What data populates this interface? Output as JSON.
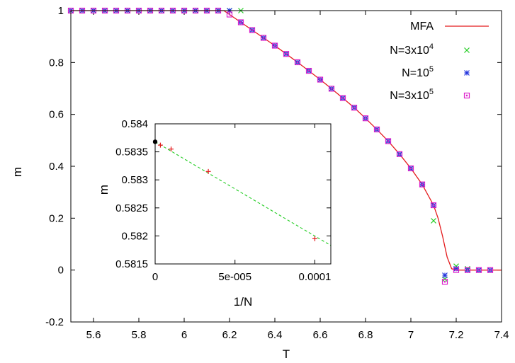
{
  "chart_data": [
    {
      "type": "scatter",
      "title": "",
      "xlabel": "T",
      "ylabel": "m",
      "xlim": [
        5.5,
        7.4
      ],
      "ylim": [
        -0.2,
        1.0
      ],
      "xticks": [
        "5.6",
        "5.8",
        "6",
        "6.2",
        "6.4",
        "6.6",
        "6.8",
        "7",
        "7.2",
        "7.4"
      ],
      "yticks": [
        "-0.2",
        "0",
        "0.2",
        "0.4",
        "0.6",
        "0.8",
        "1"
      ],
      "legend_position": "top-right",
      "series": [
        {
          "name": "MFA",
          "kind": "line",
          "color": "#e41a1c",
          "x": [
            5.5,
            5.6,
            5.7,
            5.8,
            5.9,
            6.0,
            6.1,
            6.15,
            6.175,
            6.2,
            6.25,
            6.3,
            6.35,
            6.4,
            6.45,
            6.5,
            6.55,
            6.6,
            6.65,
            6.7,
            6.75,
            6.8,
            6.85,
            6.9,
            6.95,
            7.0,
            7.05,
            7.1,
            7.12,
            7.14,
            7.16,
            7.18,
            7.2,
            7.25,
            7.3,
            7.35,
            7.4
          ],
          "y": [
            1.0,
            1.0,
            1.0,
            1.0,
            1.0,
            1.0,
            1.0,
            1.0,
            1.0,
            0.985,
            0.955,
            0.925,
            0.895,
            0.865,
            0.833,
            0.801,
            0.768,
            0.734,
            0.699,
            0.663,
            0.626,
            0.585,
            0.542,
            0.497,
            0.447,
            0.392,
            0.33,
            0.25,
            0.2,
            0.13,
            0.05,
            0.005,
            0.0,
            0.0,
            0.0,
            0.0,
            0.0
          ]
        },
        {
          "name": "N=3x10^4",
          "label_base": "N=3x10",
          "label_exp": "4",
          "kind": "points",
          "marker": "x",
          "color": "#22cc22",
          "x": [
            5.5,
            5.55,
            5.6,
            5.65,
            5.7,
            5.75,
            5.8,
            5.85,
            5.9,
            5.95,
            6.0,
            6.05,
            6.1,
            6.15,
            6.2,
            6.25,
            6.3,
            6.35,
            6.4,
            6.45,
            6.5,
            6.55,
            6.6,
            6.65,
            6.7,
            6.75,
            6.8,
            6.85,
            6.9,
            6.95,
            7.0,
            7.05,
            7.1,
            7.15,
            7.2,
            7.25,
            7.3,
            7.35
          ],
          "y": [
            1.0,
            1.0,
            1.0,
            1.0,
            1.0,
            1.0,
            1.0,
            1.0,
            1.0,
            1.0,
            1.0,
            1.0,
            1.0,
            1.0,
            1.0,
            1.0,
            0.925,
            0.895,
            0.865,
            0.833,
            0.801,
            0.768,
            0.734,
            0.699,
            0.663,
            0.626,
            0.585,
            0.542,
            0.497,
            0.447,
            0.392,
            0.33,
            0.19,
            -0.035,
            0.015,
            0.005,
            0.0,
            0.0
          ]
        },
        {
          "name": "N=10^5",
          "label_base": "N=10",
          "label_exp": "5",
          "kind": "points",
          "marker": "star",
          "color": "#2233dd",
          "x": [
            5.5,
            5.55,
            5.6,
            5.65,
            5.7,
            5.75,
            5.8,
            5.85,
            5.9,
            5.95,
            6.0,
            6.05,
            6.1,
            6.15,
            6.2,
            6.25,
            6.3,
            6.35,
            6.4,
            6.45,
            6.5,
            6.55,
            6.6,
            6.65,
            6.7,
            6.75,
            6.8,
            6.85,
            6.9,
            6.95,
            7.0,
            7.05,
            7.1,
            7.15,
            7.2,
            7.25,
            7.3,
            7.35
          ],
          "y": [
            1.0,
            1.0,
            1.0,
            1.0,
            1.0,
            1.0,
            1.0,
            1.0,
            1.0,
            1.0,
            1.0,
            1.0,
            1.0,
            1.0,
            1.0,
            0.955,
            0.925,
            0.895,
            0.865,
            0.833,
            0.801,
            0.768,
            0.734,
            0.699,
            0.663,
            0.626,
            0.585,
            0.542,
            0.497,
            0.447,
            0.392,
            0.33,
            0.25,
            -0.02,
            0.005,
            0.0,
            0.0,
            0.0
          ]
        },
        {
          "name": "N=3x10^5",
          "label_base": "N=3x10",
          "label_exp": "5",
          "kind": "points",
          "marker": "box",
          "color": "#dd22cc",
          "x": [
            5.5,
            5.55,
            5.6,
            5.65,
            5.7,
            5.75,
            5.8,
            5.85,
            5.9,
            5.95,
            6.0,
            6.05,
            6.1,
            6.15,
            6.2,
            6.25,
            6.3,
            6.35,
            6.4,
            6.45,
            6.5,
            6.55,
            6.6,
            6.65,
            6.7,
            6.75,
            6.8,
            6.85,
            6.9,
            6.95,
            7.0,
            7.05,
            7.1,
            7.15,
            7.2,
            7.25,
            7.3,
            7.35
          ],
          "y": [
            1.0,
            1.0,
            1.0,
            1.0,
            1.0,
            1.0,
            1.0,
            1.0,
            1.0,
            1.0,
            1.0,
            1.0,
            1.0,
            1.0,
            0.985,
            0.955,
            0.925,
            0.895,
            0.865,
            0.833,
            0.801,
            0.768,
            0.734,
            0.699,
            0.663,
            0.626,
            0.585,
            0.542,
            0.497,
            0.447,
            0.392,
            0.33,
            0.25,
            -0.045,
            0.0,
            0.0,
            0.0,
            0.0
          ]
        }
      ]
    },
    {
      "type": "scatter",
      "title": "",
      "xlabel": "1/N",
      "ylabel": "m",
      "xlim": [
        0,
        0.00011
      ],
      "ylim": [
        0.5815,
        0.584
      ],
      "xticks": [
        "0",
        "5e-005",
        "0.0001"
      ],
      "xtick_values": [
        0,
        5e-05,
        0.0001
      ],
      "yticks": [
        "0.5815",
        "0.582",
        "0.5825",
        "0.583",
        "0.5835",
        "0.584"
      ],
      "series": [
        {
          "kind": "line",
          "style": "dashed",
          "color": "#22cc22",
          "x": [
            0,
            0.00011
          ],
          "y": [
            0.58368,
            0.58183
          ]
        },
        {
          "kind": "points",
          "marker": "plus",
          "color": "#e41a1c",
          "x": [
            3.3e-06,
            1e-05,
            3.33e-05,
            0.0001
          ],
          "y": [
            0.58362,
            0.58355,
            0.58315,
            0.58195
          ]
        },
        {
          "kind": "points",
          "marker": "dot",
          "color": "#000000",
          "x": [
            0
          ],
          "y": [
            0.58368
          ]
        }
      ]
    }
  ]
}
